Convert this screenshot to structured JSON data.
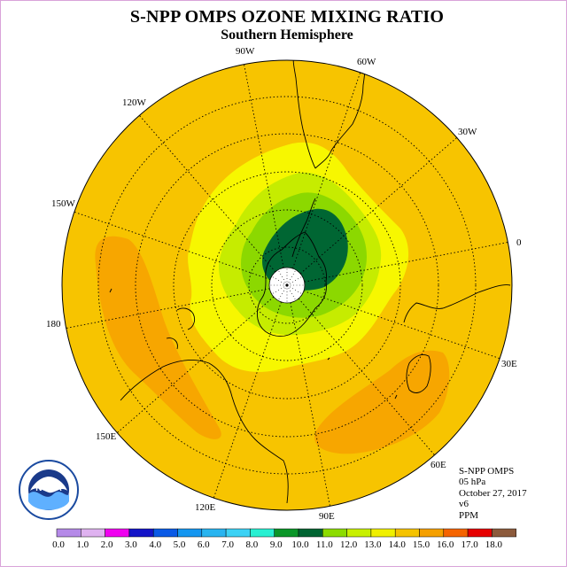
{
  "title": "S-NPP OMPS OZONE MIXING RATIO",
  "subtitle": "Southern Hemisphere",
  "longitude_labels": [
    "90W",
    "60W",
    "30W",
    "0",
    "30E",
    "60E",
    "90E",
    "120E",
    "150E",
    "180",
    "150W",
    "120W"
  ],
  "info": {
    "instrument": "S-NPP OMPS",
    "level": "05 hPa",
    "date": "October 27, 2017",
    "version": "v6",
    "units": "PPM"
  },
  "logo": {
    "text": "NOAA"
  },
  "colorbar": {
    "labels": [
      "0.0",
      "1.0",
      "2.0",
      "3.0",
      "4.0",
      "5.0",
      "6.0",
      "7.0",
      "8.0",
      "9.0",
      "10.0",
      "11.0",
      "12.0",
      "13.0",
      "14.0",
      "15.0",
      "16.0",
      "17.0",
      "18.0"
    ],
    "colors": [
      "#b58ae8",
      "#dfb2f0",
      "#f000f0",
      "#1414c8",
      "#0a5ae6",
      "#1496f0",
      "#28b4f0",
      "#3cd2f5",
      "#28f0d2",
      "#0a9628",
      "#006432",
      "#8cdc00",
      "#c8f000",
      "#f0f000",
      "#f5c300",
      "#f5a000",
      "#f56400",
      "#e60000",
      "#8c5a3c"
    ]
  },
  "colors": {
    "background_field": "#f7c400",
    "high_band": "#f7a600",
    "level_12": "#f7f700",
    "level_11": "#c6ec00",
    "level_10": "#8cd800",
    "level_9": "#006633",
    "pole_hole": "#ffffff",
    "frame": "#d9a3d9"
  }
}
